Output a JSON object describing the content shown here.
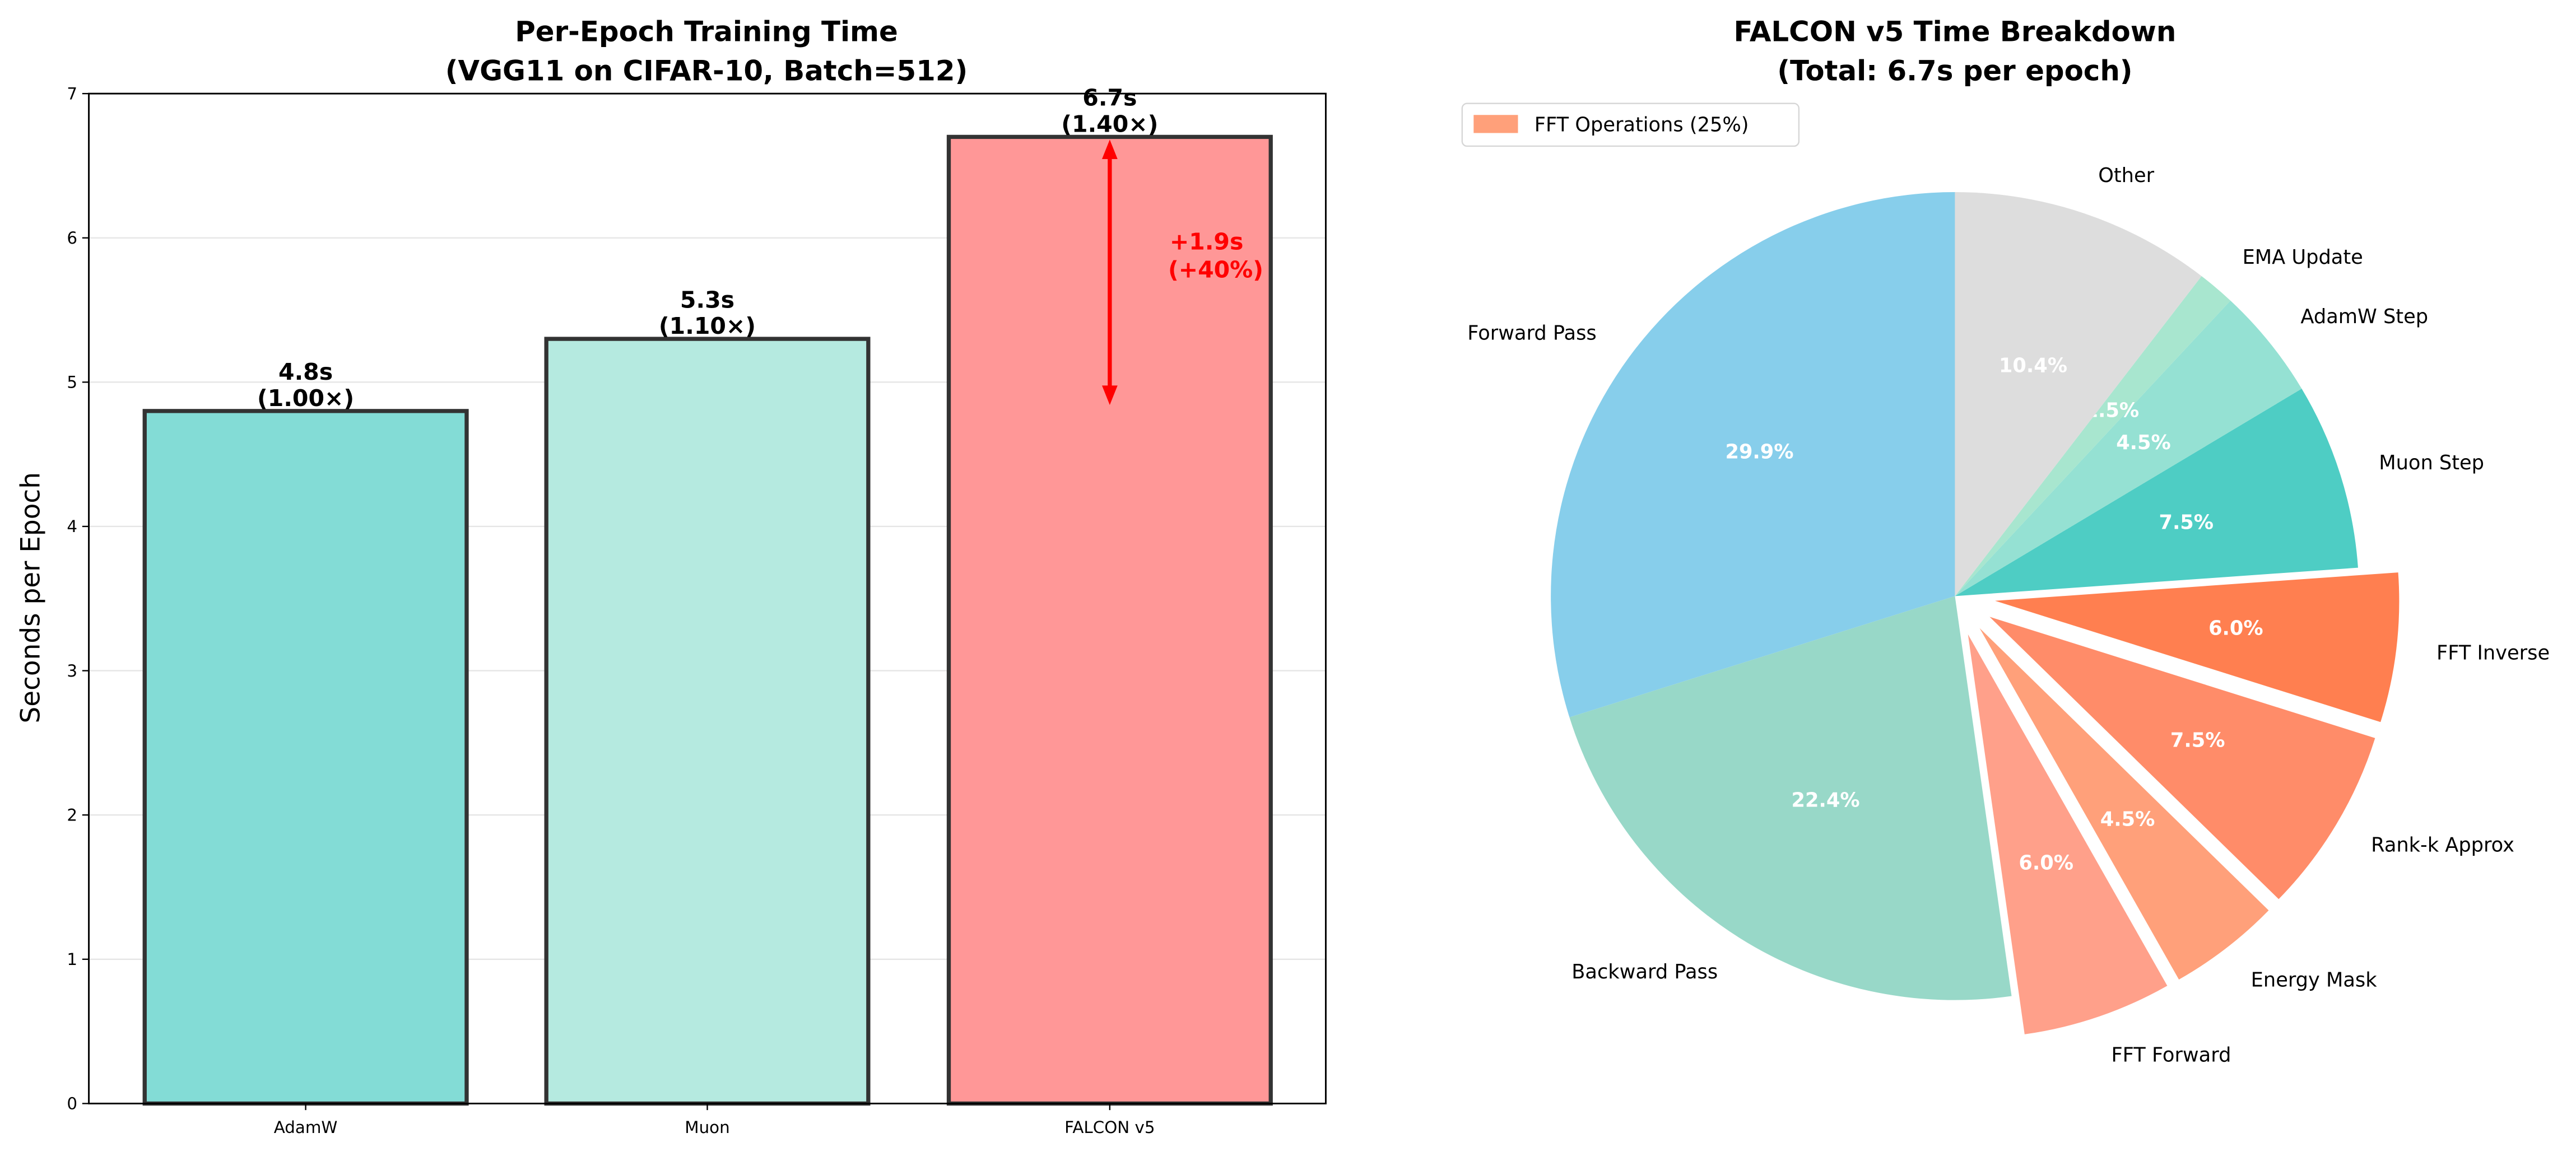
{
  "chart_data": [
    {
      "type": "bar",
      "title": "Per-Epoch Training Time",
      "subtitle": "(VGG11 on CIFAR-10, Batch=512)",
      "xlabel": "",
      "ylabel": "Seconds per Epoch",
      "ylim": [
        0,
        7
      ],
      "yticks": [
        "0",
        "1",
        "2",
        "3",
        "4",
        "5",
        "6",
        "7"
      ],
      "grid": "y",
      "categories": [
        "AdamW",
        "Muon",
        "FALCON v5"
      ],
      "values": [
        4.8,
        5.3,
        6.7
      ],
      "value_labels": [
        "4.8s",
        "5.3s",
        "6.7s"
      ],
      "ratio_labels": [
        "(1.00×)",
        "(1.10×)",
        "(1.40×)"
      ],
      "colors": [
        "#4ECDC4",
        "#95E1D3",
        "#FF6B6B"
      ],
      "edge_color": "#333333",
      "annotation": {
        "from": 4.8,
        "to": 6.7,
        "line1": "+1.9s",
        "line2": "(+40%)",
        "color": "#FF0000"
      }
    },
    {
      "type": "pie",
      "title": "FALCON v5 Time Breakdown",
      "subtitle": "(Total: 6.7s per epoch)",
      "legend": {
        "label": "FFT Operations (25%)",
        "color": "#FFA07A",
        "placement": "upper-left"
      },
      "start_angle": 90,
      "direction": "counterclockwise",
      "slices": [
        {
          "label": "Forward Pass",
          "value": 2.0,
          "pct": "29.9%",
          "color": "#87CEEB",
          "exploded": false
        },
        {
          "label": "Backward Pass",
          "value": 1.5,
          "pct": "22.4%",
          "color": "#98D8C8",
          "exploded": false
        },
        {
          "label": "FFT Forward",
          "value": 0.4,
          "pct": "6.0%",
          "color": "#FFA08A",
          "exploded": true
        },
        {
          "label": "Energy Mask",
          "value": 0.3,
          "pct": "4.5%",
          "color": "#FFA07A",
          "exploded": true
        },
        {
          "label": "Rank-k Approx",
          "value": 0.5,
          "pct": "7.5%",
          "color": "#FF8C69",
          "exploded": true
        },
        {
          "label": "FFT Inverse",
          "value": 0.4,
          "pct": "6.0%",
          "color": "#FF7F50",
          "exploded": true
        },
        {
          "label": "Muon Step",
          "value": 0.5,
          "pct": "7.5%",
          "color": "#4ECDC4",
          "exploded": false
        },
        {
          "label": "AdamW Step",
          "value": 0.3,
          "pct": "4.5%",
          "color": "#95E1D3",
          "exploded": false
        },
        {
          "label": "EMA Update",
          "value": 0.1,
          "pct": "1.5%",
          "color": "#A8E6CF",
          "exploded": false
        },
        {
          "label": "Other",
          "value": 0.7,
          "pct": "10.4%",
          "color": "#DDDDDD",
          "exploded": false
        }
      ]
    }
  ]
}
